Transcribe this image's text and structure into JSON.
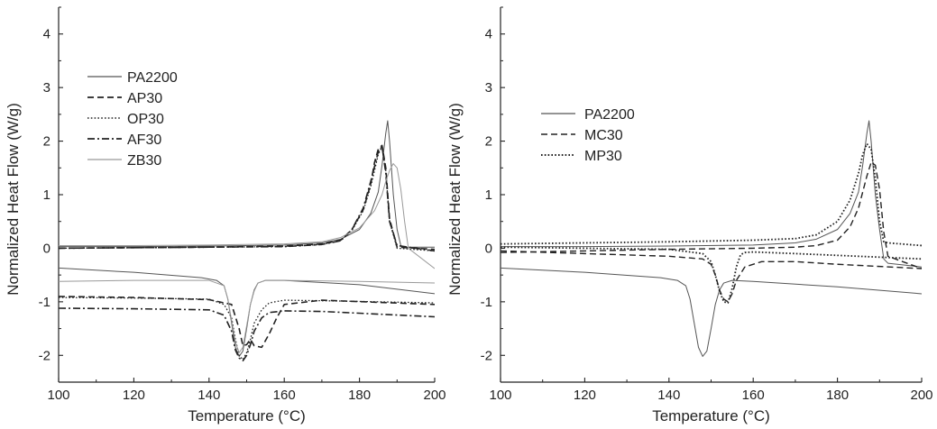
{
  "chart_data": [
    {
      "type": "line",
      "xlabel": "Temperature (°C)",
      "ylabel": "Normalized Heat Flow (W/g)",
      "xlim": [
        100,
        200
      ],
      "ylim": [
        -2.5,
        4.5
      ],
      "xticks": [
        100,
        120,
        140,
        160,
        180,
        200
      ],
      "yticks": [
        -2,
        -1,
        0,
        1,
        2,
        3,
        4
      ],
      "grid": false,
      "legend_position": "upper-left",
      "series": [
        {
          "name": "PA2200",
          "style": "solid",
          "color": "#555555",
          "width": 1.0,
          "heating": {
            "x": [
              100,
              120,
              140,
              160,
              170,
              175,
              180,
              183,
              185,
              186,
              187,
              187.5,
              188,
              189,
              190,
              191,
              192,
              200
            ],
            "y": [
              0.03,
              0.03,
              0.04,
              0.06,
              0.1,
              0.17,
              0.35,
              0.65,
              1.05,
              1.55,
              2.15,
              2.38,
              2.0,
              1.0,
              0.35,
              0.05,
              0.02,
              0.02
            ]
          },
          "cooling": {
            "x": [
              100,
              120,
              138,
              142,
              144,
              145,
              146,
              147,
              148,
              149,
              150,
              151,
              152,
              153,
              155,
              160,
              180,
              200
            ],
            "y": [
              -0.37,
              -0.45,
              -0.55,
              -0.6,
              -0.7,
              -0.95,
              -1.4,
              -1.85,
              -2.02,
              -1.92,
              -1.5,
              -1.05,
              -0.78,
              -0.65,
              -0.6,
              -0.6,
              -0.68,
              -0.85
            ]
          }
        },
        {
          "name": "AP30",
          "style": "dashed",
          "color": "#222222",
          "width": 1.6,
          "heating": {
            "x": [
              100,
              120,
              140,
              160,
              170,
              175,
              178,
              181,
              183,
              184,
              185,
              186,
              187,
              188,
              190,
              200
            ],
            "y": [
              0.0,
              0.01,
              0.02,
              0.04,
              0.08,
              0.15,
              0.35,
              0.72,
              1.2,
              1.6,
              1.85,
              1.92,
              1.5,
              0.55,
              0.02,
              -0.02
            ]
          },
          "cooling": {
            "x": [
              100,
              120,
              140,
              146,
              148,
              149,
              150,
              151,
              152,
              154,
              156,
              158,
              160,
              170,
              200
            ],
            "y": [
              -0.9,
              -0.92,
              -0.96,
              -1.05,
              -1.5,
              -1.82,
              -1.8,
              -1.7,
              -1.82,
              -1.85,
              -1.6,
              -1.3,
              -1.05,
              -0.97,
              -1.05
            ]
          }
        },
        {
          "name": "OP30",
          "style": "dotted",
          "color": "#222222",
          "width": 1.3,
          "heating": {
            "x": [
              100,
              120,
              140,
              160,
              170,
              175,
              178,
              181,
              183,
              185,
              186,
              187,
              188,
              190,
              200
            ],
            "y": [
              0.0,
              0.01,
              0.02,
              0.03,
              0.07,
              0.14,
              0.33,
              0.7,
              1.15,
              1.75,
              1.9,
              1.45,
              0.5,
              0.0,
              -0.05
            ]
          },
          "cooling": {
            "x": [
              100,
              120,
              140,
              144,
              146,
              147,
              148,
              149,
              150,
              151,
              152,
              154,
              156,
              160,
              170,
              200
            ],
            "y": [
              -0.92,
              -0.93,
              -0.95,
              -1.05,
              -1.3,
              -1.7,
              -2.0,
              -2.08,
              -1.95,
              -1.7,
              -1.4,
              -1.15,
              -1.02,
              -0.97,
              -0.98,
              -1.02
            ]
          }
        },
        {
          "name": "AF30",
          "style": "dashdot",
          "color": "#222222",
          "width": 1.6,
          "heating": {
            "x": [
              100,
              120,
              140,
              160,
              170,
              175,
              178,
              181,
              183,
              185,
              186,
              187,
              188,
              190,
              200
            ],
            "y": [
              0.0,
              0.01,
              0.02,
              0.03,
              0.07,
              0.14,
              0.35,
              0.75,
              1.25,
              1.8,
              1.9,
              1.4,
              0.5,
              0.05,
              -0.05
            ]
          },
          "cooling": {
            "x": [
              100,
              120,
              140,
              144,
              146,
              147,
              148,
              149,
              150,
              151,
              152,
              154,
              156,
              160,
              170,
              200
            ],
            "y": [
              -1.12,
              -1.13,
              -1.15,
              -1.25,
              -1.55,
              -1.9,
              -2.05,
              -2.1,
              -2.0,
              -1.8,
              -1.55,
              -1.3,
              -1.2,
              -1.17,
              -1.18,
              -1.28
            ]
          }
        },
        {
          "name": "ZB30",
          "style": "solid",
          "color": "#999999",
          "width": 1.0,
          "heating": {
            "x": [
              100,
              120,
              140,
              160,
              170,
              175,
              180,
              184,
              186,
              187,
              188,
              189,
              190,
              191,
              192,
              193,
              200
            ],
            "y": [
              0.05,
              0.05,
              0.06,
              0.08,
              0.12,
              0.2,
              0.38,
              0.7,
              1.0,
              1.25,
              1.45,
              1.58,
              1.5,
              1.1,
              0.5,
              0.0,
              -0.38
            ]
          },
          "cooling": {
            "x": [
              100,
              120,
              140,
              144,
              145,
              146,
              147,
              148,
              149,
              150,
              151,
              152,
              153,
              155,
              160,
              180,
              200
            ],
            "y": [
              -0.62,
              -0.6,
              -0.6,
              -0.7,
              -0.95,
              -1.35,
              -1.75,
              -1.95,
              -1.85,
              -1.45,
              -1.05,
              -0.8,
              -0.65,
              -0.6,
              -0.6,
              -0.62,
              -0.65
            ]
          }
        }
      ]
    },
    {
      "type": "line",
      "xlabel": "Temperature (°C)",
      "ylabel": "Normalized Heat Flow (W/g)",
      "xlim": [
        100,
        200
      ],
      "ylim": [
        -2.5,
        4.5
      ],
      "xticks": [
        100,
        120,
        140,
        160,
        180,
        200
      ],
      "yticks": [
        -2,
        -1,
        0,
        1,
        2,
        3,
        4
      ],
      "grid": false,
      "legend_position": "upper-left",
      "series": [
        {
          "name": "PA2200",
          "style": "solid",
          "color": "#555555",
          "width": 1.0,
          "heating": {
            "x": [
              100,
              120,
              140,
              160,
              170,
              175,
              180,
              183,
              185,
              186,
              187,
              187.5,
              188,
              189,
              190,
              191,
              192,
              200
            ],
            "y": [
              0.03,
              0.03,
              0.04,
              0.06,
              0.1,
              0.17,
              0.35,
              0.65,
              1.05,
              1.55,
              2.15,
              2.38,
              2.0,
              1.0,
              0.35,
              -0.2,
              -0.28,
              -0.35
            ]
          },
          "cooling": {
            "x": [
              100,
              120,
              138,
              142,
              144,
              145,
              146,
              147,
              148,
              149,
              150,
              151,
              152,
              153,
              155,
              160,
              180,
              200
            ],
            "y": [
              -0.37,
              -0.45,
              -0.55,
              -0.6,
              -0.7,
              -0.95,
              -1.4,
              -1.85,
              -2.02,
              -1.92,
              -1.5,
              -1.05,
              -0.78,
              -0.65,
              -0.6,
              -0.62,
              -0.72,
              -0.85
            ]
          }
        },
        {
          "name": "MC30",
          "style": "dashed",
          "color": "#222222",
          "width": 1.4,
          "heating": {
            "x": [
              100,
              120,
              140,
              160,
              170,
              175,
              180,
              183,
              185,
              186,
              187,
              188,
              189,
              190,
              191,
              192,
              200
            ],
            "y": [
              -0.08,
              -0.05,
              -0.02,
              0.0,
              0.02,
              0.05,
              0.15,
              0.4,
              0.75,
              1.05,
              1.35,
              1.6,
              1.55,
              1.1,
              0.3,
              -0.15,
              -0.38
            ]
          },
          "cooling": {
            "x": [
              100,
              120,
              140,
              148,
              150,
              151,
              152,
              153,
              154,
              155,
              156,
              158,
              162,
              170,
              180,
              200
            ],
            "y": [
              -0.05,
              -0.1,
              -0.15,
              -0.2,
              -0.3,
              -0.5,
              -0.78,
              -0.95,
              -1.0,
              -0.85,
              -0.6,
              -0.35,
              -0.25,
              -0.25,
              -0.3,
              -0.38
            ]
          }
        },
        {
          "name": "MP30",
          "style": "dotted",
          "color": "#222222",
          "width": 1.8,
          "heating": {
            "x": [
              100,
              120,
              140,
              160,
              170,
              175,
              180,
              183,
              185,
              186,
              187,
              188,
              189,
              190,
              191,
              192,
              200
            ],
            "y": [
              0.08,
              0.1,
              0.12,
              0.15,
              0.18,
              0.25,
              0.5,
              0.9,
              1.4,
              1.75,
              1.95,
              1.85,
              1.3,
              0.5,
              0.12,
              0.1,
              0.05
            ]
          },
          "cooling": {
            "x": [
              100,
              120,
              140,
              148,
              150,
              151,
              152,
              153,
              154,
              155,
              156,
              157,
              158,
              160,
              170,
              200
            ],
            "y": [
              0.02,
              0.0,
              -0.02,
              -0.1,
              -0.25,
              -0.5,
              -0.8,
              -1.0,
              -1.02,
              -0.75,
              -0.35,
              -0.12,
              -0.08,
              -0.07,
              -0.1,
              -0.2
            ]
          }
        }
      ]
    }
  ]
}
